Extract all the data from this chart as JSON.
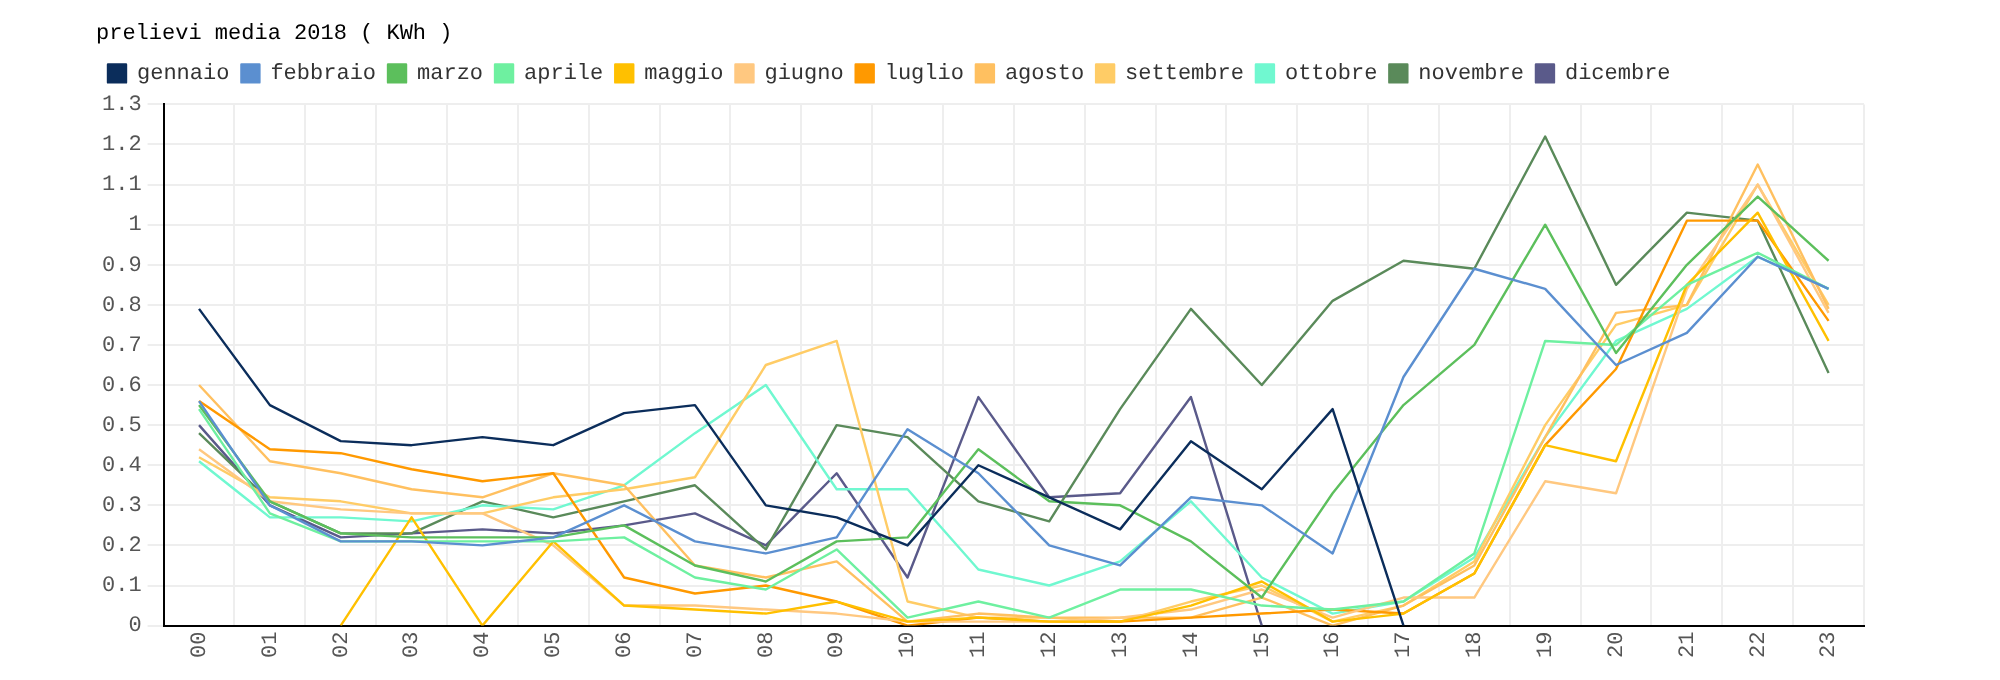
{
  "chart_data": {
    "type": "line",
    "title": "prelievi media 2018 ( KWh )",
    "categories": [
      "00",
      "01",
      "02",
      "03",
      "04",
      "05",
      "06",
      "07",
      "08",
      "09",
      "10",
      "11",
      "12",
      "13",
      "14",
      "15",
      "16",
      "17",
      "18",
      "19",
      "20",
      "21",
      "22",
      "23"
    ],
    "series": [
      {
        "name": "gennaio",
        "color": "#0b2d5b",
        "values": [
          0.79,
          0.55,
          0.46,
          0.45,
          0.47,
          0.45,
          0.53,
          0.55,
          0.3,
          0.27,
          0.2,
          0.4,
          0.32,
          0.24,
          0.46,
          0.34,
          0.54,
          0.0,
          null,
          null,
          null,
          null,
          null,
          null
        ]
      },
      {
        "name": "febbraio",
        "color": "#5b8fd0",
        "values": [
          0.56,
          0.3,
          0.21,
          0.21,
          0.2,
          0.22,
          0.3,
          0.21,
          0.18,
          0.22,
          0.49,
          0.38,
          0.2,
          0.15,
          0.32,
          0.3,
          0.18,
          0.62,
          0.89,
          0.84,
          0.65,
          0.73,
          0.92,
          0.84
        ]
      },
      {
        "name": "marzo",
        "color": "#5cbf5c",
        "values": [
          0.55,
          0.31,
          0.23,
          0.22,
          0.22,
          0.22,
          0.25,
          0.15,
          0.11,
          0.21,
          0.22,
          0.44,
          0.31,
          0.3,
          0.21,
          0.07,
          0.33,
          0.55,
          0.7,
          1.0,
          0.68,
          0.9,
          1.07,
          0.91
        ]
      },
      {
        "name": "aprile",
        "color": "#6ef0a0",
        "values": [
          0.54,
          0.28,
          0.21,
          0.21,
          0.21,
          0.21,
          0.22,
          0.12,
          0.09,
          0.19,
          0.02,
          0.06,
          0.02,
          0.09,
          0.09,
          0.05,
          0.04,
          0.06,
          0.18,
          0.71,
          0.7,
          0.85,
          0.93,
          0.84
        ]
      },
      {
        "name": "maggio",
        "color": "#ffc000",
        "values": [
          null,
          null,
          0.0,
          0.27,
          0.0,
          0.21,
          0.05,
          0.04,
          0.03,
          0.06,
          0.01,
          0.02,
          0.01,
          0.01,
          0.05,
          0.11,
          0.01,
          0.03,
          0.13,
          0.45,
          0.41,
          0.85,
          1.03,
          0.71
        ]
      },
      {
        "name": "giugno",
        "color": "#ffc880",
        "values": [
          0.44,
          0.31,
          0.29,
          0.28,
          0.28,
          0.2,
          0.05,
          0.05,
          0.04,
          0.03,
          0.01,
          0.01,
          0.01,
          0.02,
          0.04,
          0.09,
          0.02,
          0.07,
          0.07,
          0.36,
          0.33,
          0.84,
          1.1,
          0.78
        ]
      },
      {
        "name": "luglio",
        "color": "#ff9900",
        "values": [
          0.56,
          0.44,
          0.43,
          0.39,
          0.36,
          0.38,
          0.12,
          0.08,
          0.1,
          0.06,
          0.0,
          0.02,
          0.01,
          0.01,
          0.02,
          0.03,
          0.04,
          0.03,
          0.13,
          0.45,
          0.64,
          1.01,
          1.01,
          0.76
        ]
      },
      {
        "name": "agosto",
        "color": "#ffc060",
        "values": [
          0.6,
          0.41,
          0.38,
          0.34,
          0.32,
          0.38,
          0.35,
          0.15,
          0.12,
          0.16,
          0.01,
          0.03,
          0.02,
          0.02,
          0.02,
          0.07,
          0.0,
          0.05,
          0.15,
          0.47,
          0.78,
          0.8,
          1.15,
          0.79
        ]
      },
      {
        "name": "settembre",
        "color": "#ffcc66",
        "values": [
          0.42,
          0.32,
          0.31,
          0.28,
          0.28,
          0.32,
          0.34,
          0.37,
          0.65,
          0.71,
          0.06,
          0.02,
          0.02,
          0.01,
          0.06,
          0.1,
          0.01,
          0.05,
          0.16,
          0.5,
          0.75,
          0.8,
          1.1,
          0.8
        ]
      },
      {
        "name": "ottobre",
        "color": "#70f8d0",
        "values": [
          0.41,
          0.27,
          0.27,
          0.26,
          0.3,
          0.29,
          0.35,
          0.48,
          0.6,
          0.34,
          0.34,
          0.14,
          0.1,
          0.16,
          0.31,
          0.12,
          0.03,
          0.06,
          0.17,
          0.47,
          0.71,
          0.79,
          0.92,
          0.84
        ]
      },
      {
        "name": "novembre",
        "color": "#5a8a5a",
        "values": [
          0.48,
          0.31,
          0.23,
          0.23,
          0.31,
          0.27,
          0.31,
          0.35,
          0.19,
          0.5,
          0.47,
          0.31,
          0.26,
          0.54,
          0.79,
          0.6,
          0.81,
          0.91,
          0.89,
          1.22,
          0.85,
          1.03,
          1.01,
          0.63
        ]
      },
      {
        "name": "dicembre",
        "color": "#5a5a8a",
        "values": [
          0.5,
          0.3,
          0.22,
          0.23,
          0.24,
          0.23,
          0.25,
          0.28,
          0.2,
          0.38,
          0.12,
          0.57,
          0.32,
          0.33,
          0.57,
          0.0,
          null,
          null,
          null,
          null,
          null,
          null,
          null,
          null
        ]
      }
    ],
    "ylim": [
      0,
      1.3
    ],
    "yticks": [
      0,
      0.1,
      0.2,
      0.3,
      0.4,
      0.5,
      0.6,
      0.7,
      0.8,
      0.9,
      1,
      1.1,
      1.2,
      1.3
    ],
    "grid": true,
    "legend": "top",
    "marker": "none",
    "line_style": "solid"
  }
}
